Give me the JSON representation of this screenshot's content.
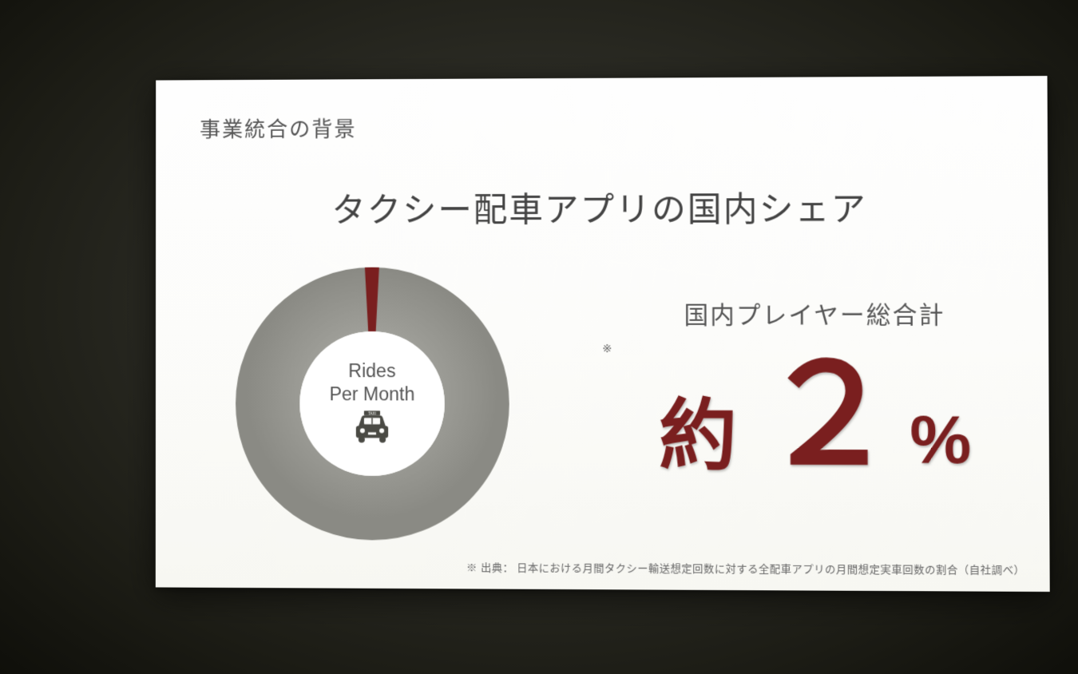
{
  "slide": {
    "header": "事業統合の背景",
    "title": "タクシー配車アプリの国内シェア",
    "subheader": "国内プレイヤー総合計",
    "asterisk": "※",
    "stat_prefix": "約",
    "stat_value": "２",
    "stat_suffix": "%",
    "footnote": "※ 出典： 日本における月間タクシー輸送想定回数に対する全配車アプリの月間想定実車回数の割合（自社調べ）"
  },
  "donut": {
    "type": "donut",
    "center_label_line1": "Rides",
    "center_label_line2": "Per Month",
    "taxi_label": "TAXI",
    "outer_radius": 170,
    "inner_radius": 90,
    "slice_percent": 2,
    "slice_start_deg": -3,
    "slice_end_deg": 3,
    "ring_color": "#9a9a94",
    "slice_color": "#7a1f1f",
    "center_bg": "#ffffff",
    "background": "#fcfcfa",
    "icon_color": "#4a4a44"
  },
  "style": {
    "header_color": "#555555",
    "title_color": "#444444",
    "stat_color": "#7a1f1f",
    "footnote_color": "#666666",
    "slide_bg": "#fcfcfa",
    "header_fontsize": 26,
    "title_fontsize": 42,
    "subheader_fontsize": 30,
    "approx_fontsize": 96,
    "number_fontsize": 170,
    "percent_fontsize": 84,
    "footnote_fontsize": 13
  }
}
